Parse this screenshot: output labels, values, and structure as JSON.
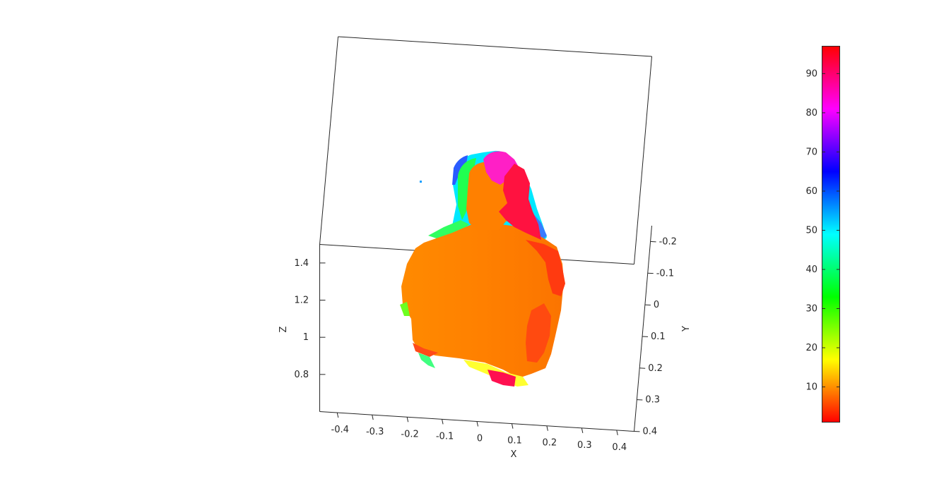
{
  "figure": {
    "background": "#ffffff",
    "axis_color": "#262626"
  },
  "chart_data": {
    "type": "scatter",
    "title": "",
    "subtitle": "",
    "xlabel": "X",
    "ylabel": "Y",
    "zlabel": "Z",
    "xlim": [
      -0.45,
      0.45
    ],
    "ylim": [
      -0.25,
      0.4
    ],
    "zlim": [
      0.6,
      1.5
    ],
    "x_ticks": [
      "-0.4",
      "-0.3",
      "-0.2",
      "-0.1",
      "0",
      "0.1",
      "0.2",
      "0.3",
      "0.4"
    ],
    "x_tick_values": [
      -0.4,
      -0.3,
      -0.2,
      -0.1,
      0,
      0.1,
      0.2,
      0.3,
      0.4
    ],
    "y_ticks": [
      "-0.2",
      "-0.1",
      "0",
      "0.1",
      "0.2",
      "0.3",
      "0.4"
    ],
    "y_tick_values": [
      -0.2,
      -0.1,
      0,
      0.1,
      0.2,
      0.3,
      0.4
    ],
    "z_ticks": [
      "0.8",
      "1",
      "1.2",
      "1.4"
    ],
    "z_tick_values": [
      0.8,
      1.0,
      1.2,
      1.4
    ],
    "grid": false,
    "box": true,
    "colormap": "hsv",
    "colorbar": {
      "location": "right",
      "ticks": [
        "10",
        "20",
        "30",
        "40",
        "50",
        "60",
        "70",
        "80",
        "90"
      ],
      "tick_values": [
        10,
        20,
        30,
        40,
        50,
        60,
        70,
        80,
        90
      ],
      "range": [
        1,
        97
      ]
    },
    "point_cloud": {
      "dominant_color": "#ff8000",
      "regions": [
        {
          "part": "torso",
          "color": "#ff8000",
          "value": 5
        },
        {
          "part": "face",
          "color": "#ff8000",
          "value": 5
        },
        {
          "part": "right shoulder edge",
          "color": "#ff2a1a",
          "value": 2
        },
        {
          "part": "hair",
          "color": "#ff20c0",
          "value": 85
        },
        {
          "part": "back of head",
          "color": "#ff1a3a",
          "value": 95
        },
        {
          "part": "head left rim",
          "color": "#20ff40",
          "value": 35
        },
        {
          "part": "head outer rim",
          "color": "#00e0ff",
          "value": 50
        },
        {
          "part": "neck rim",
          "color": "#3070ff",
          "value": 57
        },
        {
          "part": "lower left",
          "color": "#60ff20",
          "value": 27
        },
        {
          "part": "bottom",
          "color": "#ffff20",
          "value": 18
        },
        {
          "part": "bottom right",
          "color": "#ff1050",
          "value": 95
        }
      ]
    }
  }
}
